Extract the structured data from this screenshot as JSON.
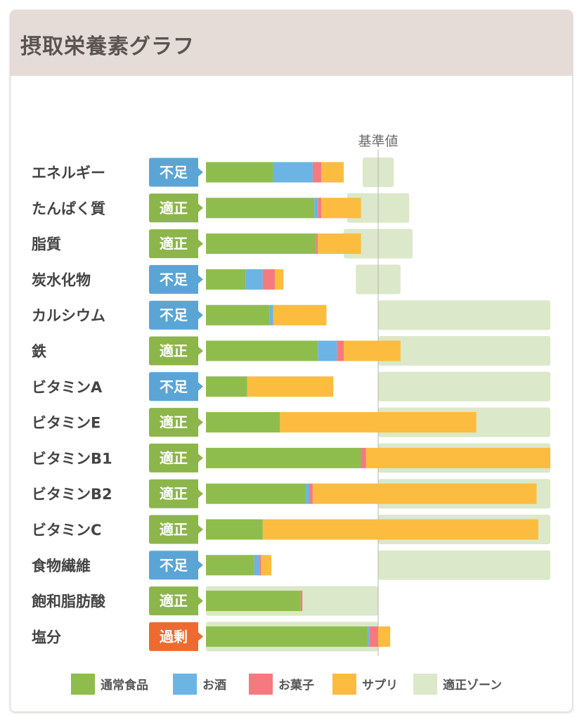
{
  "header": {
    "title": "摂取栄養素グラフ"
  },
  "chart_data": {
    "type": "bar",
    "stacked": true,
    "orientation": "horizontal",
    "reference_label": "基準値",
    "categories": [
      "エネルギー",
      "たんぱく質",
      "脂質",
      "炭水化物",
      "カルシウム",
      "鉄",
      "ビタミンA",
      "ビタミンE",
      "ビタミンB1",
      "ビタミンB2",
      "ビタミンC",
      "食物繊維",
      "飽和脂肪酸",
      "塩分"
    ],
    "status": [
      "不足",
      "適正",
      "適正",
      "不足",
      "不足",
      "適正",
      "不足",
      "適正",
      "適正",
      "適正",
      "適正",
      "不足",
      "適正",
      "過剰"
    ],
    "status_colors": {
      "不足": "#5aa5d6",
      "適正": "#8cb54a",
      "過剰": "#ee6a2f"
    },
    "series": [
      {
        "name": "通常食品",
        "color": "#8fbd4d",
        "values": [
          39,
          63,
          64,
          23,
          37,
          65,
          24,
          43,
          90,
          58,
          33,
          28,
          55,
          94
        ]
      },
      {
        "name": "お酒",
        "color": "#6cb4e3",
        "values": [
          23,
          2,
          0,
          10,
          2,
          11,
          0,
          0,
          0,
          2,
          0,
          3,
          0,
          1
        ]
      },
      {
        "name": "お菓子",
        "color": "#f57a80",
        "values": [
          5,
          2,
          1,
          7,
          0,
          4,
          0,
          0,
          3,
          2,
          0,
          1,
          1,
          5
        ]
      },
      {
        "name": "サプリ",
        "color": "#fbbc3f",
        "values": [
          13,
          23,
          25,
          5,
          31,
          33,
          50,
          114,
          107,
          130,
          160,
          6,
          0,
          7
        ]
      }
    ],
    "adequate_zone": {
      "name": "適正ゾーン",
      "color": "#dbe8c9",
      "ranges": [
        [
          91,
          109
        ],
        [
          82,
          118
        ],
        [
          80,
          120
        ],
        [
          87,
          113
        ],
        [
          100,
          200
        ],
        [
          100,
          200
        ],
        [
          100,
          200
        ],
        [
          100,
          200
        ],
        [
          100,
          200
        ],
        [
          100,
          200
        ],
        [
          100,
          200
        ],
        [
          100,
          200
        ],
        [
          0,
          100
        ],
        [
          0,
          100
        ]
      ]
    },
    "reference_value": 100,
    "xlim": [
      0,
      200
    ]
  }
}
